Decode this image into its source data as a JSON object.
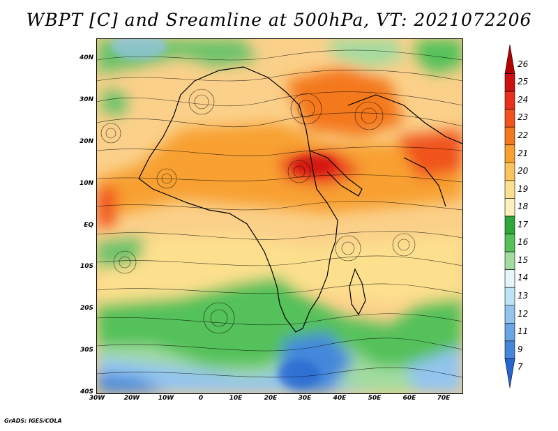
{
  "title": "WBPT [C] and Sreamline at 500hPa, VT: 2021072206",
  "footer": "GrADS: IGES/COLA",
  "lat_labels": [
    "40N",
    "30N",
    "20N",
    "10N",
    "EQ",
    "10S",
    "20S",
    "30S",
    "40S"
  ],
  "lon_labels": [
    "30W",
    "20W",
    "10W",
    "0",
    "10E",
    "20E",
    "30E",
    "40E",
    "50E",
    "60E",
    "70E"
  ],
  "colorbar": {
    "labels": [
      "26",
      "25",
      "24",
      "23",
      "22",
      "21",
      "20",
      "19",
      "18",
      "17",
      "16",
      "15",
      "14",
      "13",
      "12",
      "11",
      "9",
      "7"
    ],
    "colors": [
      "#b30000",
      "#cc1010",
      "#e8301c",
      "#f0531e",
      "#f4781f",
      "#f8a030",
      "#fbc260",
      "#fde08e",
      "#fef0ba",
      "#2ea83a",
      "#54c15a",
      "#a3dca0",
      "#e5f6fb",
      "#bfe3f6",
      "#93c4ee",
      "#6aa6e6",
      "#4588db",
      "#2566d0"
    ]
  },
  "map": {
    "lon_range": [
      -30,
      75
    ],
    "lat_range": [
      -40,
      45
    ],
    "variable": "WBPT",
    "units": "C",
    "level": "500hPa",
    "valid_time": "2021072206"
  }
}
